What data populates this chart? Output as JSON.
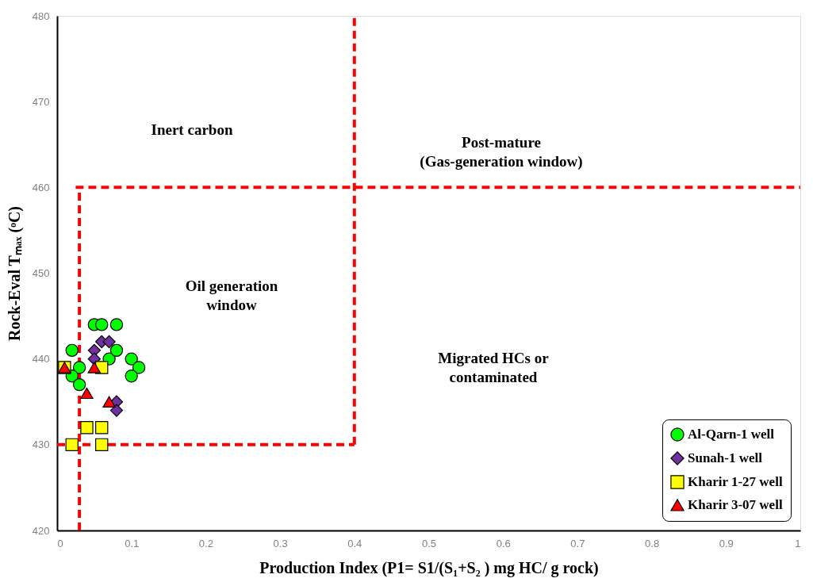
{
  "chart_data": {
    "type": "scatter",
    "xlabel": "Production Index (P1= S1/(S₁+S₂ ) mg HC/ g rock)",
    "ylabel": "Rock-Eval Tₘₐₓ (ᵒC)",
    "xlim": [
      0,
      1
    ],
    "ylim": [
      420,
      480
    ],
    "xticks": [
      0,
      0.1,
      0.2,
      0.3,
      0.4,
      0.5,
      0.6,
      0.7,
      0.8,
      0.9,
      1
    ],
    "yticks": [
      420,
      430,
      440,
      450,
      460,
      470,
      480
    ],
    "grid": false,
    "legend": "bottom right",
    "series": [
      {
        "type": "line",
        "color": "#ff0000",
        "line_style": "dashed",
        "x": [
          0.03,
          0.03
        ],
        "values": [
          420,
          460
        ]
      },
      {
        "type": "line",
        "color": "#ff0000",
        "line_style": "dashed",
        "x": [
          0.025,
          1
        ],
        "values": [
          460,
          460
        ]
      },
      {
        "type": "line",
        "color": "#ff0000",
        "line_style": "dashed",
        "x": [
          0.4,
          0.4
        ],
        "values": [
          430,
          480
        ]
      },
      {
        "type": "line",
        "color": "#ff0000",
        "line_style": "dashed",
        "x": [
          0,
          0.4
        ],
        "values": [
          430,
          430
        ]
      },
      {
        "name": "Al-Qarn-1 well",
        "color": "#00ff00",
        "marker": "circle",
        "x": [
          0.05,
          0.06,
          0.08,
          0.02,
          0.03,
          0.02,
          0.03,
          0.07,
          0.08,
          0.1,
          0.11,
          0.1
        ],
        "values": [
          444,
          444,
          444,
          441,
          439,
          438,
          437,
          440,
          441,
          440,
          439,
          438
        ]
      },
      {
        "name": "Sunah-1 well",
        "color": "#7030a0",
        "marker": "diamond",
        "x": [
          0.06,
          0.07,
          0.05,
          0.05,
          0.08,
          0.08
        ],
        "values": [
          442,
          442,
          441,
          440,
          435,
          434
        ]
      },
      {
        "name": "Kharir 1-27 well",
        "color": "#ffff00",
        "marker": "square",
        "x": [
          0.01,
          0.06,
          0.04,
          0.06,
          0.02,
          0.06
        ],
        "values": [
          439,
          439,
          432,
          432,
          430,
          430
        ]
      },
      {
        "name": "Kharir 3-07 well",
        "color": "#ff0000",
        "marker": "triangle",
        "x": [
          0.01,
          0.05,
          0.04,
          0.07
        ],
        "values": [
          439,
          439,
          436,
          435
        ]
      }
    ],
    "annotations": [
      "Inert carbon",
      "Post-mature\n(Gas-generation window)",
      "Oil generation\nwindow",
      "Migrated HCs or\ncontaminated"
    ]
  }
}
